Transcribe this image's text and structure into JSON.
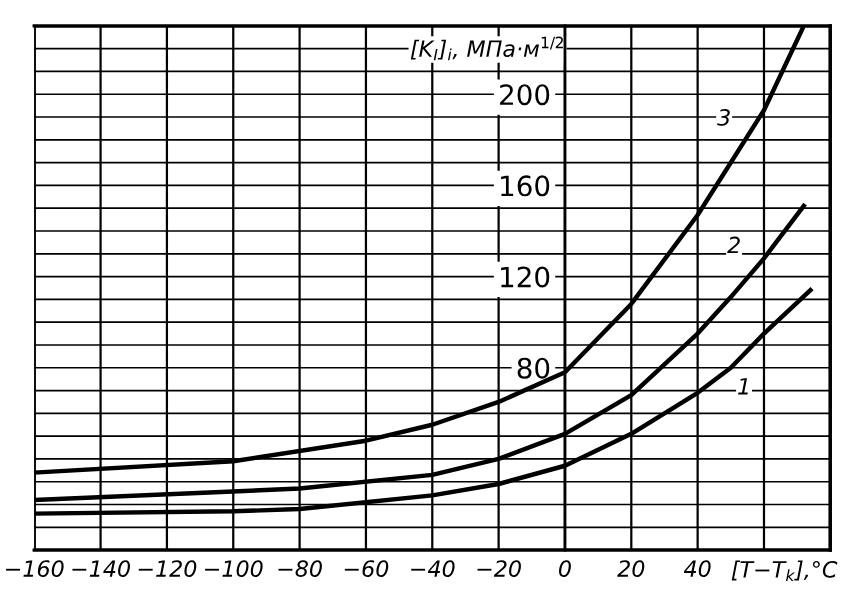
{
  "chart_data": {
    "type": "line",
    "xlabel": "[T−T$_{k}$],°C",
    "ylabel": "[K$_{I}$]$_{i}$, МПа·м$^{1/2}$",
    "series": [
      {
        "color": "#000000",
        "x": [
          -160,
          -100,
          -80,
          -40,
          -20,
          0,
          20,
          40,
          50,
          60,
          74
        ],
        "values": [
          16,
          17,
          18,
          24,
          29,
          37,
          51,
          69,
          80,
          95,
          114
        ]
      },
      {
        "color": "#000000",
        "x": [
          -160,
          -80,
          -40,
          -20,
          0,
          20,
          40,
          50,
          60,
          72
        ],
        "values": [
          22,
          27,
          33,
          40,
          51,
          68,
          95,
          111,
          128,
          151
        ]
      },
      {
        "color": "#000000",
        "x": [
          -160,
          -100,
          -60,
          -40,
          -20,
          0,
          20,
          40,
          60,
          72
        ],
        "values": [
          34,
          39,
          48,
          55,
          65,
          78,
          108,
          147,
          193,
          230
        ]
      }
    ],
    "annotations": [
      {
        "text": "1",
        "x": 54,
        "y": 71
      },
      {
        "text": "2",
        "x": 51,
        "y": 133
      },
      {
        "text": "3",
        "x": 48,
        "y": 189
      }
    ],
    "xlim": [
      -160,
      80
    ],
    "ylim": [
      0,
      230
    ],
    "xticks": [
      {
        "value": -160,
        "label": "−160"
      },
      {
        "value": -140,
        "label": "−140"
      },
      {
        "value": -120,
        "label": "−120"
      },
      {
        "value": -100,
        "label": "−100"
      },
      {
        "value": -80,
        "label": "−80"
      },
      {
        "value": -60,
        "label": "−60"
      },
      {
        "value": -40,
        "label": "−40"
      },
      {
        "value": -20,
        "label": "−20"
      },
      0,
      20,
      40
    ],
    "yticks": [
      80,
      120,
      160,
      200
    ],
    "grid": true,
    "legend": false,
    "marker": "none",
    "line_style": "solid"
  }
}
